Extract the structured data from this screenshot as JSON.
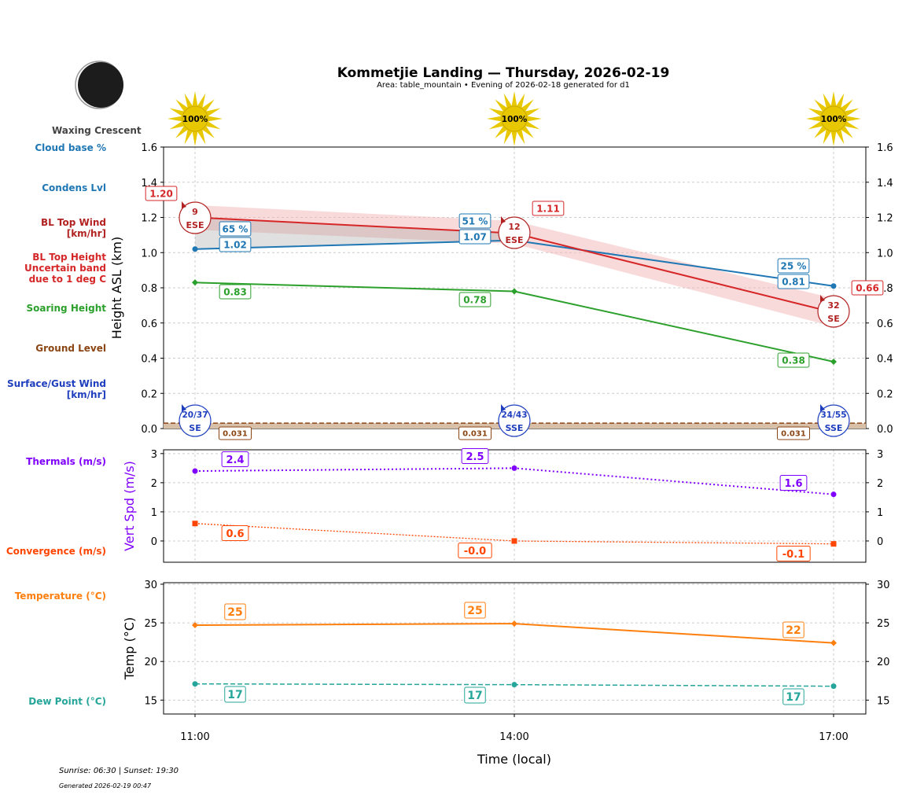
{
  "header": {
    "title": "Kommetjie Landing — Thursday, 2026-02-19",
    "subtitle": "Area: table_mountain • Evening of 2026-02-18 generated for d1"
  },
  "moon": {
    "phase": "Waxing Crescent",
    "icon": "moon-icon"
  },
  "sun_icons": [
    "100%",
    "100%",
    "100%"
  ],
  "left_labels": {
    "cloud_base": "Cloud base %",
    "condens": "Condens Lvl",
    "bl_wind": "BL Top Wind\n[km/hr]",
    "bl_height": "BL Top Height\nUncertain band\ndue to 1 deg C",
    "soaring": "Soaring Height",
    "ground": "Ground Level",
    "surface_wind": "Surface/Gust Wind\n[km/hr]",
    "thermals": "Thermals (m/s)",
    "convergence": "Convergence (m/s)",
    "temperature": "Temperature (°C)",
    "dew": "Dew Point (°C)"
  },
  "footer": {
    "sun": "Sunrise: 06:30 | Sunset: 19:30",
    "generated": "Generated 2026-02-19 00:47"
  },
  "colors": {
    "bl": "#d62728",
    "condens": "#1f77b4",
    "soaring": "#2ca02c",
    "ground": "#8b4513",
    "surface": "#1f3fbf",
    "thermal": "#8000ff",
    "conv": "#ff4500",
    "temp": "#ff7f0e",
    "dew": "#26a69a"
  },
  "chart_data": [
    {
      "type": "line",
      "ylabel": "Height ASL (km)",
      "ylim": [
        0,
        1.6
      ],
      "yticks": [
        "0.0",
        "0.2",
        "0.4",
        "0.6",
        "0.8",
        "1.0",
        "1.2",
        "1.4",
        "1.6"
      ],
      "grid": true,
      "x": [
        "11:00",
        "14:00",
        "17:00"
      ],
      "series": [
        {
          "key": "bl",
          "values": [
            1.2,
            1.11,
            0.66
          ],
          "labels": [
            "1.20",
            "1.11",
            "0.66"
          ],
          "band": [
            [
              1.13,
              1.27
            ],
            [
              1.05,
              1.18
            ],
            [
              0.58,
              0.74
            ]
          ]
        },
        {
          "key": "condens",
          "values": [
            1.02,
            1.07,
            0.81
          ],
          "labels": [
            "1.02",
            "1.07",
            "0.81"
          ],
          "cloud_pct": [
            "65 %",
            "51 %",
            "25 %"
          ]
        },
        {
          "key": "soaring",
          "values": [
            0.83,
            0.78,
            0.38
          ],
          "labels": [
            "0.83",
            "0.78",
            "0.38"
          ]
        },
        {
          "key": "ground",
          "values": [
            0.031,
            0.031,
            0.031
          ],
          "labels": [
            "0.031",
            "0.031",
            "0.031"
          ]
        }
      ],
      "bl_wind": [
        {
          "speed": "9",
          "dir": "ESE"
        },
        {
          "speed": "12",
          "dir": "ESE"
        },
        {
          "speed": "32",
          "dir": "SE"
        }
      ],
      "surface_wind": [
        {
          "speed": "20/37",
          "dir": "SE"
        },
        {
          "speed": "24/43",
          "dir": "SSE"
        },
        {
          "speed": "31/55",
          "dir": "SSE"
        }
      ]
    },
    {
      "type": "line",
      "ylabel": "Vert Spd (m/s)",
      "ylim": [
        -0.73,
        3.13
      ],
      "yticks": [
        "0",
        "1",
        "2",
        "3"
      ],
      "grid": true,
      "series": [
        {
          "key": "thermal",
          "values": [
            2.4,
            2.5,
            1.6
          ],
          "labels": [
            "2.4",
            "2.5",
            "1.6"
          ]
        },
        {
          "key": "conv",
          "values": [
            0.6,
            0.0,
            -0.1
          ],
          "labels": [
            "0.6",
            "-0.0",
            "-0.1"
          ]
        }
      ]
    },
    {
      "type": "line",
      "ylabel": "Temp (°C)",
      "xlabel": "Time (local)",
      "ylim": [
        13.2,
        30.2
      ],
      "yticks": [
        "15",
        "20",
        "25",
        "30"
      ],
      "grid": true,
      "series": [
        {
          "key": "temp",
          "values": [
            24.7,
            24.9,
            22.4
          ],
          "labels": [
            "25",
            "25",
            "22"
          ]
        },
        {
          "key": "dew",
          "values": [
            17.1,
            17.0,
            16.8
          ],
          "labels": [
            "17",
            "17",
            "17"
          ]
        }
      ]
    }
  ]
}
